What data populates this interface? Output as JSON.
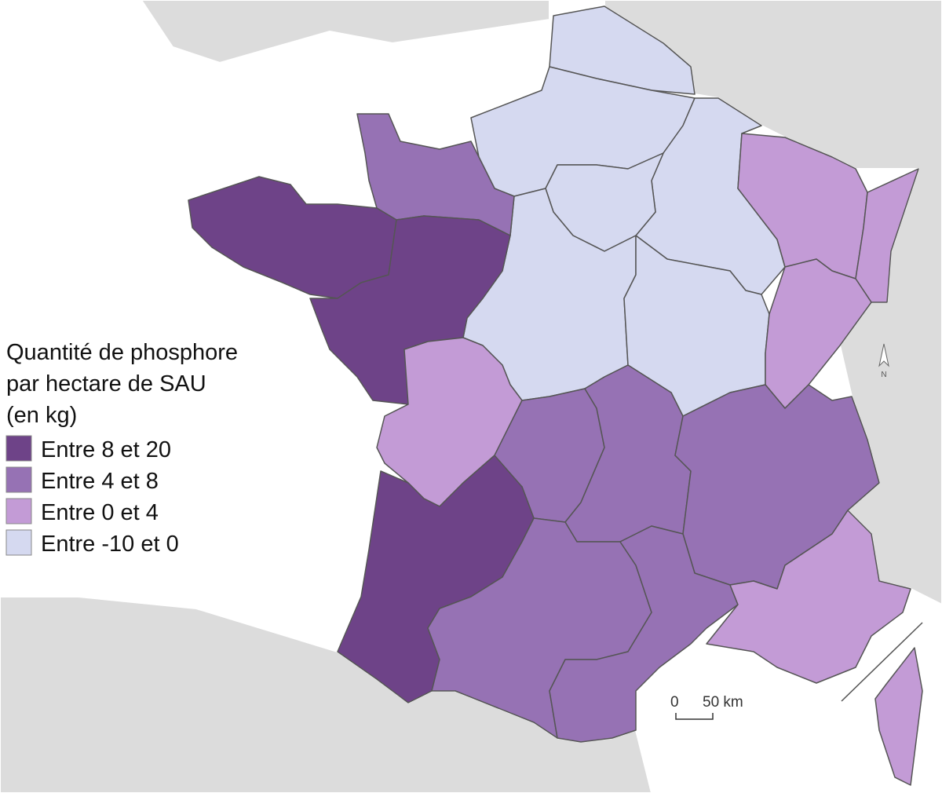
{
  "legend": {
    "title": [
      "Quantité de phosphore",
      "par hectare de SAU",
      "(en kg)"
    ],
    "items": [
      {
        "label": "Entre 8 et 20",
        "color": "#6e4388"
      },
      {
        "label": "Entre 4 et 8",
        "color": "#9672b4"
      },
      {
        "label": "Entre 0 et 4",
        "color": "#c39bd6"
      },
      {
        "label": "Entre -10 et 0",
        "color": "#d5d9f0"
      }
    ]
  },
  "scale_bar": {
    "start": "0",
    "end": "50 km"
  },
  "north_arrow": "N"
}
